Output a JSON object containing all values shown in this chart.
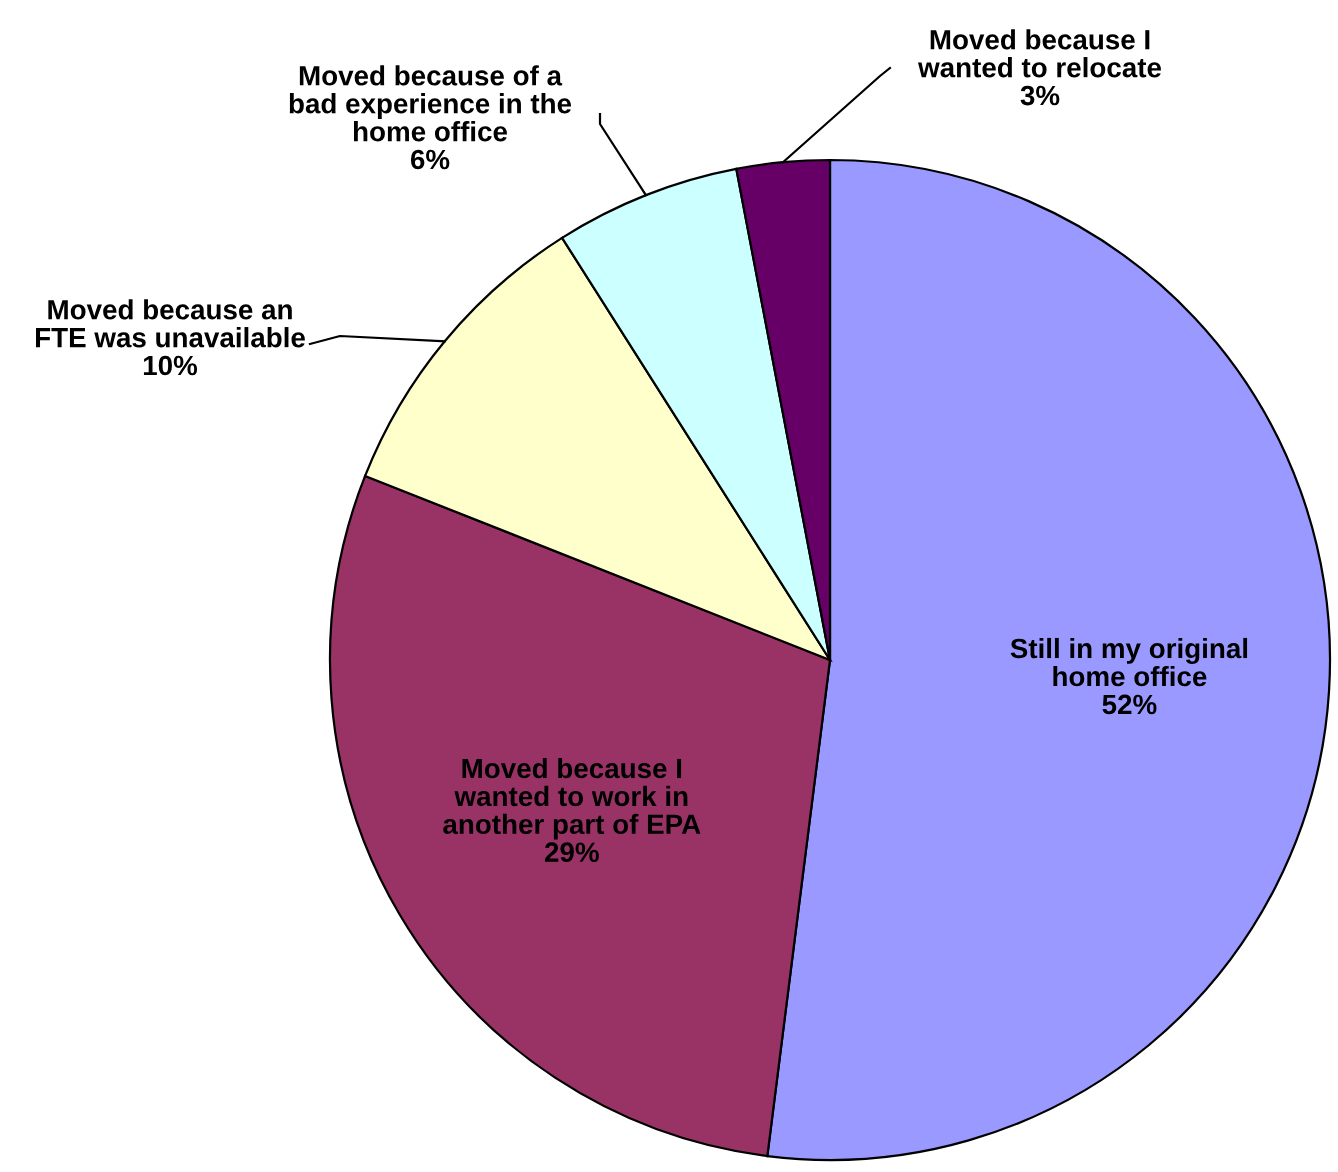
{
  "chart_data": {
    "type": "pie",
    "categories": [
      "Still in my original\nhome office",
      "Moved because I\nwanted to work in\nanother part of EPA",
      "Moved because an\nFTE was unavailable",
      "Moved because of a\nbad experience in the\nhome office",
      "Moved because I\nwanted to relocate"
    ],
    "values": [
      52,
      29,
      10,
      6,
      3
    ],
    "colors": [
      "#9999ff",
      "#993366",
      "#ffffcc",
      "#ccffff",
      "#660066"
    ],
    "value_labels": [
      "52%",
      "29%",
      "10%",
      "6%",
      "3%"
    ],
    "legend": false
  }
}
